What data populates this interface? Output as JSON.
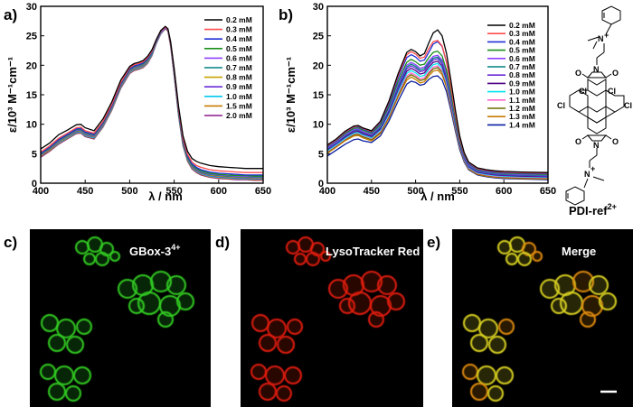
{
  "colors": {
    "series": [
      "#000000",
      "#ff4d4d",
      "#1f2fd6",
      "#1a8f1a",
      "#8e3fff",
      "#008080",
      "#c8a000",
      "#6b2ad6",
      "#00c8f0",
      "#c87a00",
      "#8b1a8b"
    ],
    "series_b": [
      "#000000",
      "#ff4d4d",
      "#1f2fd6",
      "#1a8f1a",
      "#8e3fff",
      "#008080",
      "#6b2ad6",
      "#4b0082",
      "#00e5ee",
      "#ff66cc",
      "#6b6b00",
      "#c87a00",
      "#0b1fa0"
    ],
    "cell_green": "#33cc22",
    "cell_red": "#e01a10",
    "cell_yellow": "#d8d020"
  },
  "chart_data": [
    {
      "panel": "a)",
      "type": "line",
      "xlabel": "λ / nm",
      "ylabel": "ε/10³ M⁻¹cm⁻¹",
      "xlim": [
        400,
        650
      ],
      "ylim": [
        0,
        30
      ],
      "xticks": [
        "400",
        "450",
        "500",
        "550",
        "600",
        "650"
      ],
      "yticks": [
        "0",
        "5",
        "10",
        "15",
        "20",
        "25",
        "30"
      ],
      "x": [
        400,
        410,
        420,
        430,
        440,
        445,
        450,
        460,
        470,
        480,
        490,
        500,
        505,
        510,
        515,
        520,
        525,
        530,
        535,
        540,
        543,
        546,
        550,
        555,
        560,
        565,
        570,
        575,
        580,
        590,
        600,
        610,
        620,
        630,
        640,
        650
      ],
      "legend_position": "top-right",
      "series": [
        {
          "name": "0.2 mM",
          "values": [
            5.8,
            6.8,
            8.2,
            9.0,
            9.9,
            10.0,
            9.4,
            8.9,
            10.9,
            13.8,
            17.5,
            19.8,
            20.3,
            20.5,
            20.8,
            21.5,
            22.6,
            24.4,
            25.9,
            26.6,
            26.2,
            24.0,
            19.5,
            13.0,
            8.0,
            5.4,
            4.2,
            3.7,
            3.4,
            3.0,
            2.8,
            2.7,
            2.6,
            2.5,
            2.5,
            2.5
          ]
        },
        {
          "name": "0.3 mM",
          "values": [
            5.3,
            6.3,
            7.6,
            8.5,
            9.4,
            9.5,
            8.9,
            8.5,
            10.5,
            13.4,
            17.1,
            19.6,
            20.1,
            20.3,
            20.6,
            21.3,
            22.4,
            24.3,
            25.8,
            26.5,
            26.1,
            23.8,
            19.2,
            12.6,
            7.5,
            4.9,
            3.6,
            3.0,
            2.7,
            2.3,
            2.1,
            2.0,
            1.9,
            1.8,
            1.8,
            1.8
          ]
        },
        {
          "name": "0.4 mM",
          "values": [
            5.1,
            6.1,
            7.4,
            8.3,
            9.2,
            9.3,
            8.7,
            8.3,
            10.3,
            13.2,
            16.9,
            19.4,
            19.9,
            20.1,
            20.4,
            21.1,
            22.3,
            24.2,
            25.7,
            26.5,
            26.1,
            23.7,
            19.0,
            12.3,
            7.2,
            4.6,
            3.3,
            2.7,
            2.3,
            1.9,
            1.7,
            1.6,
            1.5,
            1.4,
            1.4,
            1.4
          ]
        },
        {
          "name": "0.5 mM",
          "values": [
            5.0,
            6.0,
            7.3,
            8.2,
            9.1,
            9.2,
            8.6,
            8.2,
            10.2,
            13.1,
            16.8,
            19.3,
            19.8,
            20.0,
            20.3,
            21.0,
            22.2,
            24.1,
            25.7,
            26.5,
            26.1,
            23.7,
            18.9,
            12.1,
            7.0,
            4.4,
            3.1,
            2.5,
            2.1,
            1.7,
            1.5,
            1.4,
            1.3,
            1.3,
            1.2,
            1.2
          ]
        },
        {
          "name": "0.6 mM",
          "values": [
            4.9,
            5.9,
            7.2,
            8.1,
            9.0,
            9.1,
            8.5,
            8.1,
            10.1,
            13.0,
            16.7,
            19.2,
            19.7,
            19.9,
            20.2,
            20.9,
            22.1,
            24.0,
            25.6,
            26.4,
            26.0,
            23.6,
            18.8,
            12.0,
            6.9,
            4.3,
            3.0,
            2.4,
            2.0,
            1.6,
            1.4,
            1.3,
            1.2,
            1.2,
            1.1,
            1.1
          ]
        },
        {
          "name": "0.7 mM",
          "values": [
            4.8,
            5.8,
            7.1,
            8.0,
            8.9,
            9.0,
            8.4,
            8.0,
            10.0,
            12.9,
            16.6,
            19.1,
            19.6,
            19.8,
            20.1,
            20.8,
            22.0,
            24.0,
            25.6,
            26.4,
            26.0,
            23.6,
            18.7,
            11.9,
            6.8,
            4.2,
            2.9,
            2.3,
            1.9,
            1.5,
            1.3,
            1.2,
            1.1,
            1.1,
            1.0,
            1.0
          ]
        },
        {
          "name": "0.8 mM",
          "values": [
            4.7,
            5.7,
            7.0,
            7.9,
            8.8,
            8.9,
            8.3,
            7.9,
            9.9,
            12.8,
            16.5,
            19.0,
            19.5,
            19.7,
            20.0,
            20.7,
            22.0,
            23.9,
            25.5,
            26.4,
            26.0,
            23.5,
            18.6,
            11.8,
            6.7,
            4.1,
            2.8,
            2.2,
            1.8,
            1.4,
            1.2,
            1.1,
            1.0,
            1.0,
            0.9,
            0.9
          ]
        },
        {
          "name": "0.9 mM",
          "values": [
            4.6,
            5.6,
            6.9,
            7.8,
            8.7,
            8.8,
            8.2,
            7.8,
            9.8,
            12.7,
            16.4,
            18.9,
            19.4,
            19.6,
            19.9,
            20.6,
            21.9,
            23.9,
            25.5,
            26.3,
            25.9,
            23.5,
            18.5,
            11.7,
            6.6,
            4.0,
            2.7,
            2.1,
            1.7,
            1.3,
            1.1,
            1.0,
            0.9,
            0.9,
            0.8,
            0.8
          ]
        },
        {
          "name": "1.0 mM",
          "values": [
            4.6,
            5.6,
            6.8,
            7.7,
            8.6,
            8.7,
            8.1,
            7.7,
            9.7,
            12.6,
            16.3,
            18.8,
            19.3,
            19.5,
            19.8,
            20.5,
            21.8,
            23.8,
            25.4,
            26.3,
            25.9,
            23.4,
            18.4,
            11.6,
            6.5,
            3.9,
            2.6,
            2.0,
            1.6,
            1.2,
            1.0,
            0.9,
            0.8,
            0.8,
            0.7,
            0.7
          ]
        },
        {
          "name": "1.5 mM",
          "values": [
            4.5,
            5.5,
            6.7,
            7.6,
            8.5,
            8.6,
            8.0,
            7.6,
            9.6,
            12.5,
            16.2,
            18.7,
            19.2,
            19.4,
            19.7,
            20.4,
            21.7,
            23.8,
            25.4,
            26.2,
            25.8,
            23.3,
            18.3,
            11.5,
            6.4,
            3.8,
            2.5,
            1.9,
            1.5,
            1.1,
            0.9,
            0.8,
            0.7,
            0.7,
            0.6,
            0.6
          ]
        },
        {
          "name": "2.0 mM",
          "values": [
            4.4,
            5.4,
            6.6,
            7.5,
            8.4,
            8.5,
            7.9,
            7.5,
            9.5,
            12.4,
            16.1,
            18.6,
            19.1,
            19.3,
            19.6,
            20.3,
            21.6,
            23.7,
            25.3,
            26.2,
            25.8,
            23.2,
            18.2,
            11.4,
            6.3,
            3.7,
            2.4,
            1.8,
            1.4,
            1.0,
            0.8,
            0.7,
            0.6,
            0.6,
            0.5,
            0.5
          ]
        }
      ]
    },
    {
      "panel": "b)",
      "type": "line",
      "xlabel": "λ / nm",
      "ylabel": "ε/10³ M⁻¹cm⁻¹",
      "xlim": [
        400,
        650
      ],
      "ylim": [
        0,
        30
      ],
      "xticks": [
        "400",
        "450",
        "500",
        "550",
        "600",
        "650"
      ],
      "yticks": [
        "0",
        "5",
        "10",
        "15",
        "20",
        "25",
        "30"
      ],
      "x": [
        400,
        410,
        420,
        430,
        435,
        440,
        450,
        460,
        470,
        480,
        490,
        495,
        500,
        505,
        510,
        515,
        520,
        525,
        530,
        535,
        540,
        545,
        550,
        555,
        560,
        570,
        580,
        590,
        600,
        620,
        650
      ],
      "legend_position": "top-right",
      "series": [
        {
          "name": "0.2 mM",
          "values": [
            6.5,
            7.5,
            8.8,
            9.7,
            9.8,
            9.4,
            8.9,
            10.5,
            14.0,
            18.5,
            22.2,
            22.7,
            22.3,
            21.6,
            22.0,
            23.8,
            25.5,
            26.0,
            25.0,
            22.0,
            17.5,
            12.5,
            8.0,
            5.2,
            3.6,
            2.6,
            2.3,
            2.1,
            2.0,
            1.9,
            1.8
          ]
        },
        {
          "name": "0.3 mM",
          "values": [
            6.4,
            7.4,
            8.7,
            9.6,
            9.7,
            9.3,
            8.8,
            10.4,
            13.8,
            18.2,
            21.8,
            22.3,
            21.9,
            21.2,
            21.4,
            22.8,
            24.0,
            24.2,
            23.3,
            20.6,
            16.4,
            11.8,
            7.6,
            5.0,
            3.5,
            2.5,
            2.2,
            2.0,
            1.9,
            1.8,
            1.7
          ]
        },
        {
          "name": "0.4 mM",
          "values": [
            6.3,
            7.3,
            8.6,
            9.5,
            9.6,
            9.2,
            8.7,
            10.2,
            13.5,
            17.8,
            21.3,
            21.8,
            21.4,
            20.7,
            20.9,
            22.2,
            23.6,
            24.0,
            23.2,
            20.5,
            16.3,
            11.7,
            7.5,
            4.9,
            3.4,
            2.4,
            2.1,
            1.9,
            1.8,
            1.7,
            1.6
          ]
        },
        {
          "name": "0.5 mM",
          "values": [
            6.2,
            7.2,
            8.4,
            9.3,
            9.4,
            9.0,
            8.5,
            9.9,
            13.1,
            17.2,
            20.5,
            21.0,
            20.6,
            20.0,
            20.2,
            21.3,
            22.2,
            22.4,
            21.6,
            19.1,
            15.3,
            11.0,
            7.1,
            4.7,
            3.3,
            2.3,
            2.0,
            1.8,
            1.7,
            1.6,
            1.5
          ]
        },
        {
          "name": "0.6 mM",
          "values": [
            6.0,
            7.0,
            8.2,
            9.1,
            9.2,
            8.8,
            8.3,
            9.7,
            12.8,
            16.8,
            20.0,
            20.5,
            20.1,
            19.5,
            19.7,
            20.7,
            21.5,
            21.7,
            20.9,
            18.5,
            14.8,
            10.7,
            6.9,
            4.5,
            3.1,
            2.2,
            1.9,
            1.7,
            1.6,
            1.5,
            1.4
          ]
        },
        {
          "name": "0.7 mM",
          "values": [
            5.9,
            6.9,
            8.1,
            9.0,
            9.1,
            8.7,
            8.2,
            9.5,
            12.6,
            16.5,
            19.7,
            20.2,
            19.8,
            19.2,
            19.4,
            20.4,
            21.2,
            21.4,
            20.6,
            18.2,
            14.6,
            10.5,
            6.8,
            4.4,
            3.0,
            2.1,
            1.8,
            1.6,
            1.5,
            1.4,
            1.3
          ]
        },
        {
          "name": "0.8 mM",
          "values": [
            5.8,
            6.8,
            8.0,
            8.9,
            9.0,
            8.6,
            8.1,
            9.4,
            12.4,
            16.2,
            19.4,
            19.9,
            19.5,
            18.9,
            19.1,
            20.1,
            20.9,
            21.1,
            20.3,
            17.9,
            14.4,
            10.3,
            6.7,
            4.3,
            2.9,
            2.0,
            1.7,
            1.5,
            1.4,
            1.3,
            1.2
          ]
        },
        {
          "name": "0.9 mM",
          "values": [
            5.7,
            6.7,
            7.8,
            8.7,
            8.8,
            8.4,
            7.9,
            9.2,
            12.1,
            15.9,
            19.0,
            19.5,
            19.1,
            18.5,
            18.7,
            19.7,
            20.5,
            20.7,
            19.9,
            17.6,
            14.1,
            10.1,
            6.5,
            4.2,
            2.8,
            1.9,
            1.6,
            1.4,
            1.3,
            1.2,
            1.1
          ]
        },
        {
          "name": "1.0 mM",
          "values": [
            5.5,
            6.5,
            7.6,
            8.5,
            8.6,
            8.2,
            7.7,
            9.0,
            11.8,
            15.5,
            18.6,
            19.1,
            18.7,
            18.1,
            18.3,
            19.3,
            20.1,
            20.3,
            19.5,
            17.2,
            13.8,
            9.9,
            6.4,
            4.1,
            2.7,
            1.8,
            1.5,
            1.3,
            1.2,
            1.1,
            1.0
          ]
        },
        {
          "name": "1.1 mM",
          "values": [
            5.4,
            6.4,
            7.5,
            8.4,
            8.5,
            8.1,
            7.6,
            8.8,
            11.6,
            15.2,
            18.2,
            18.7,
            18.3,
            17.7,
            17.9,
            18.9,
            19.7,
            19.9,
            19.1,
            16.9,
            13.5,
            9.7,
            6.3,
            4.0,
            2.6,
            1.7,
            1.4,
            1.2,
            1.1,
            1.0,
            0.9
          ]
        },
        {
          "name": "1.2 mM",
          "values": [
            5.3,
            6.3,
            7.4,
            8.2,
            8.3,
            7.9,
            7.4,
            8.6,
            11.4,
            14.9,
            17.9,
            18.4,
            18.0,
            17.4,
            17.6,
            18.6,
            19.4,
            19.6,
            18.8,
            16.6,
            13.3,
            9.5,
            6.2,
            3.9,
            2.5,
            1.6,
            1.3,
            1.1,
            1.0,
            0.9,
            0.8
          ]
        },
        {
          "name": "1.3 mM",
          "values": [
            5.1,
            6.1,
            7.2,
            8.0,
            8.1,
            7.7,
            7.2,
            8.4,
            11.1,
            14.6,
            17.5,
            18.0,
            17.6,
            17.0,
            17.2,
            18.2,
            19.0,
            19.2,
            18.4,
            16.3,
            13.0,
            9.3,
            6.0,
            3.8,
            2.4,
            1.5,
            1.2,
            1.0,
            0.9,
            0.8,
            0.7
          ]
        },
        {
          "name": "1.4 mM",
          "values": [
            4.6,
            5.6,
            6.6,
            7.4,
            7.5,
            7.2,
            6.9,
            8.0,
            10.6,
            13.9,
            16.8,
            17.3,
            17.1,
            16.6,
            16.8,
            17.6,
            18.1,
            18.2,
            17.5,
            15.5,
            12.4,
            8.9,
            5.7,
            3.6,
            2.3,
            1.4,
            1.1,
            0.9,
            0.8,
            0.7,
            0.6
          ]
        }
      ]
    }
  ],
  "structure": {
    "caption": "PDI-ref",
    "caption_charge": "2+",
    "atoms": {
      "n_plus": "N",
      "plus": "+",
      "o": "O",
      "n": "N",
      "cl": "Cl"
    }
  },
  "images": [
    {
      "panel": "c)",
      "title": "GBox-3",
      "title_charge": "4+",
      "tone": "green"
    },
    {
      "panel": "d)",
      "title": "LysoTracker Red",
      "title_charge": "",
      "tone": "red"
    },
    {
      "panel": "e)",
      "title": "Merge",
      "title_charge": "",
      "tone": "yellow"
    }
  ]
}
